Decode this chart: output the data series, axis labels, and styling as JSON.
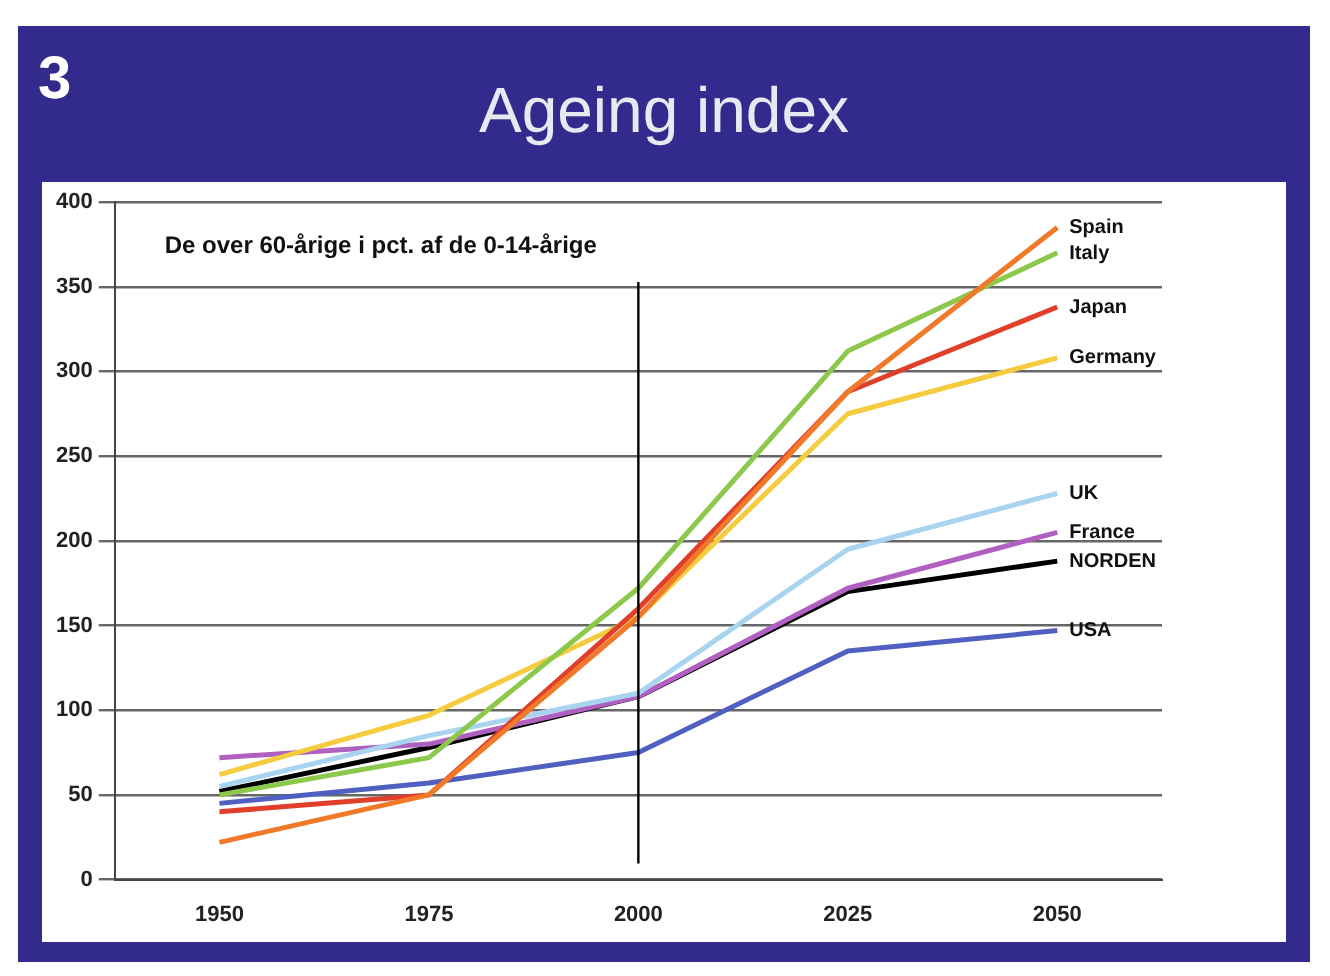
{
  "chart_data": {
    "type": "line",
    "title": "Ageing index",
    "subtitle": "De over 60-årige i pct. af de 0-14-årige",
    "annotations": [
      "3"
    ],
    "categories": [
      "1950",
      "1975",
      "2000",
      "2025",
      "2050"
    ],
    "ylim": [
      0,
      400
    ],
    "yticks": [
      0,
      50,
      100,
      150,
      200,
      250,
      300,
      350,
      400
    ],
    "grid": "y",
    "legend": false,
    "marker": "none",
    "line_style": "solid",
    "ref_lines": [
      {
        "axis": "x",
        "value": "2000",
        "color": "#000000"
      }
    ],
    "series": [
      {
        "name": "Spain",
        "color": "#f07a2a",
        "values": [
          22,
          50,
          155,
          288,
          385
        ]
      },
      {
        "name": "Italy",
        "color": "#8cc84b",
        "values": [
          50,
          72,
          172,
          312,
          370
        ]
      },
      {
        "name": "Japan",
        "color": "#e0402a",
        "values": [
          40,
          50,
          160,
          288,
          338
        ]
      },
      {
        "name": "Germany",
        "color": "#f5cc40",
        "values": [
          62,
          97,
          155,
          275,
          308
        ]
      },
      {
        "name": "UK",
        "color": "#a8d4f0",
        "values": [
          55,
          85,
          110,
          195,
          228
        ]
      },
      {
        "name": "France",
        "color": "#b060c0",
        "values": [
          72,
          80,
          108,
          172,
          205
        ]
      },
      {
        "name": "NORDEN",
        "color": "#000000",
        "values": [
          52,
          78,
          108,
          170,
          188
        ]
      },
      {
        "name": "USA",
        "color": "#5060c0",
        "values": [
          45,
          57,
          75,
          135,
          147
        ]
      }
    ]
  }
}
